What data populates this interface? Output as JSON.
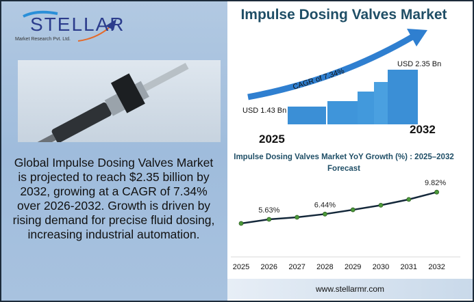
{
  "logo": {
    "name": "STELLAR",
    "subtitle": "Market Research Pvt. Ltd."
  },
  "description": "Global Impulse Dosing Valves Market is projected to reach $2.35 billion by 2032, growing at a CAGR of 7.34% over 2026-2032. Growth is driven by rising demand for precise fluid dosing, increasing industrial automation.",
  "infographic": {
    "title": "Impulse Dosing Valves Market",
    "cagr": "CAGR of 7.34%",
    "start_value": "USD 1.43 Bn",
    "end_value": "USD 2.35 Bn",
    "start_year": "2025",
    "end_year": "2032"
  },
  "footer": {
    "url": "www.stellarmr.com"
  },
  "colors": {
    "line": "#14283a",
    "marker": "#4c9a3a",
    "bar": "#3b8fd6",
    "title": "#1f4e66"
  },
  "chart_data": {
    "type": "line",
    "title": "Impulse Dosing Valves Market YoY Growth (%) : 2025–2032 Forecast",
    "categories": [
      "2025",
      "2026",
      "2027",
      "2028",
      "2029",
      "2030",
      "2031",
      "2032"
    ],
    "values": [
      5.0,
      5.63,
      5.95,
      6.44,
      7.1,
      7.8,
      8.7,
      9.82
    ],
    "data_labels": {
      "2026": "5.63%",
      "2028": "6.44%",
      "2032": "9.82%"
    },
    "grid": false,
    "ylim": [
      0,
      11
    ]
  }
}
